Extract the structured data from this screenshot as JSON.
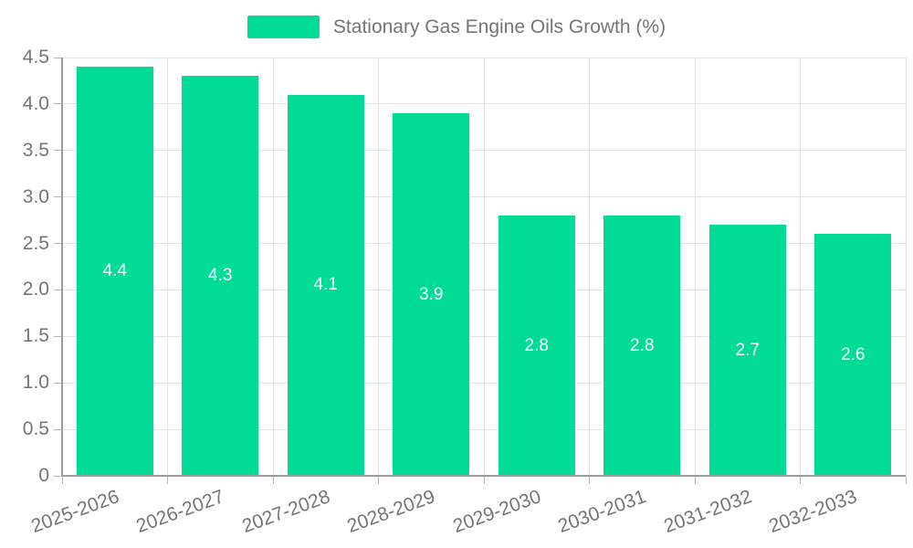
{
  "legend": {
    "label": "Stationary Gas Engine Oils Growth (%)"
  },
  "chart_data": {
    "type": "bar",
    "title": "Stationary Gas Engine Oils Growth (%)",
    "series_name": "Stationary Gas Engine Oils Growth (%)",
    "categories": [
      "2025-2026",
      "2026-2027",
      "2027-2028",
      "2028-2029",
      "2029-2030",
      "2030-2031",
      "2031-2032",
      "2032-2033"
    ],
    "values": [
      4.4,
      4.3,
      4.1,
      3.9,
      2.8,
      2.8,
      2.7,
      2.6
    ],
    "value_labels": [
      "4.4",
      "4.3",
      "4.1",
      "3.9",
      "2.8",
      "2.8",
      "2.7",
      "2.6"
    ],
    "xlabel": "",
    "ylabel": "",
    "ylim": [
      0,
      4.5
    ],
    "ytick_step": 0.5,
    "ytick_labels": [
      "0",
      "0.5",
      "1.0",
      "1.5",
      "2.0",
      "2.5",
      "3.0",
      "3.5",
      "4.0",
      "4.5"
    ],
    "grid": true,
    "legend_position": "top",
    "colors": {
      "bar": "#00DC95",
      "axis_text": "#757575",
      "value_label": "#ffffff",
      "gridline": "#e4e4e4",
      "axis_line": "#9b9b9b"
    }
  }
}
